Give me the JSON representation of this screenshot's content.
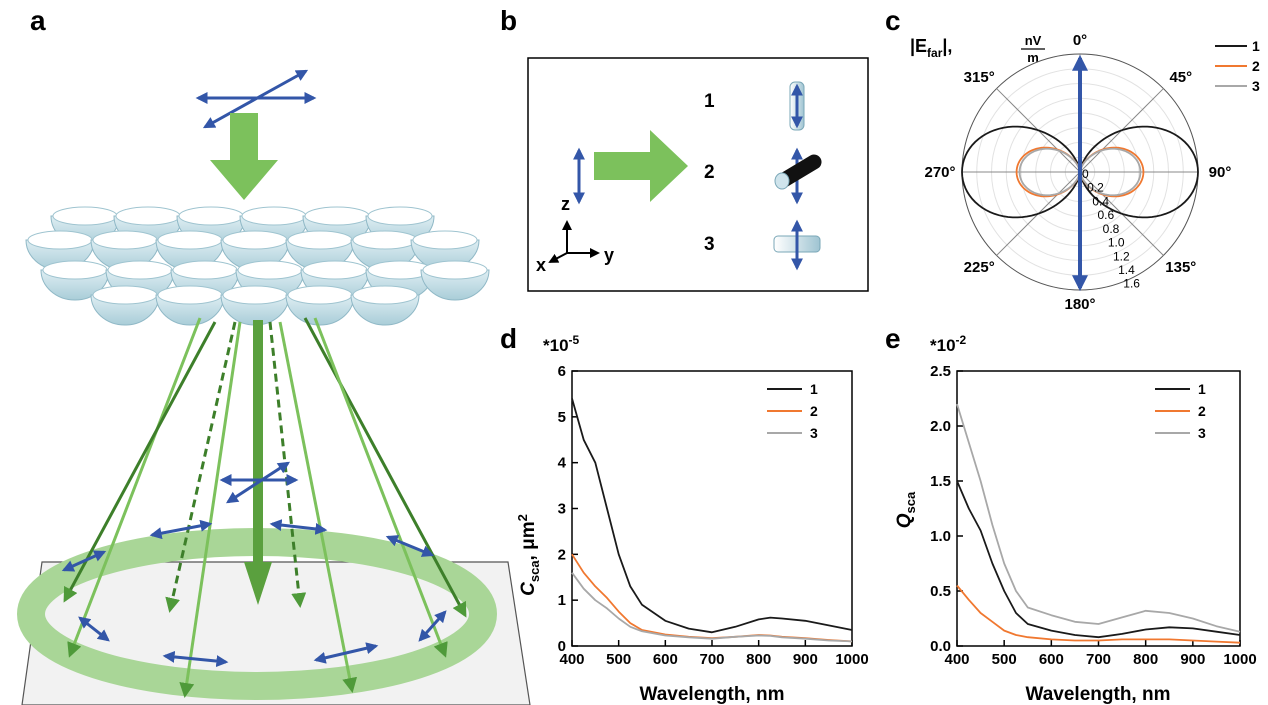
{
  "panels": {
    "a": {
      "label": "a"
    },
    "b": {
      "label": "b",
      "rows": [
        "1",
        "2",
        "3"
      ],
      "axes": {
        "z": "z",
        "x": "x",
        "y": "y"
      }
    },
    "c": {
      "label": "c",
      "ylabel_main": "|E",
      "ylabel_sub": "far",
      "ylabel_tail": "|,",
      "unit_num": "nV",
      "unit_den": "m",
      "angle_labels": [
        "0°",
        "45°",
        "90°",
        "135°",
        "180°",
        "225°",
        "270°",
        "315°"
      ],
      "radial_ticks": [
        "0",
        "0.2",
        "0.4",
        "0.6",
        "0.8",
        "1.0",
        "1.2",
        "1.4",
        "1.6"
      ],
      "legend": [
        "1",
        "2",
        "3"
      ]
    },
    "d": {
      "label": "d",
      "multiplier": "*10",
      "multiplier_exp": "-5",
      "ylabel": "C",
      "ylabel_sub": "sca",
      "ylabel_unit": ", μm",
      "ylabel_exp": "2",
      "xlabel": "Wavelength, nm",
      "xticks": [
        "400",
        "500",
        "600",
        "700",
        "800",
        "900",
        "1000"
      ],
      "yticks": [
        "0",
        "1",
        "2",
        "3",
        "4",
        "5",
        "6"
      ],
      "legend": [
        "1",
        "2",
        "3"
      ]
    },
    "e": {
      "label": "e",
      "multiplier": "*10",
      "multiplier_exp": "-2",
      "ylabel": "Q",
      "ylabel_sub": "sca",
      "xlabel": "Wavelength, nm",
      "xticks": [
        "400",
        "500",
        "600",
        "700",
        "800",
        "900",
        "1000"
      ],
      "yticks": [
        "0.0",
        "0.5",
        "1.0",
        "1.5",
        "2.0",
        "2.5"
      ],
      "legend": [
        "1",
        "2",
        "3"
      ]
    }
  },
  "colors": {
    "series1": "#1a1a1a",
    "series2": "#f07830",
    "series3": "#a8a8a8",
    "arrow_blue": "#3356a8",
    "beam_green": "#7cc15c"
  },
  "chart_data": [
    {
      "type": "line",
      "panel": "c",
      "polar": true,
      "rlim": [
        0,
        1.6
      ],
      "legend_position": "top-right",
      "series": [
        {
          "name": "1",
          "peak": 1.6,
          "shape": "sin^2 dipole lobes at 90° and 270°"
        },
        {
          "name": "2",
          "peak": 0.86,
          "shape": "sin^2 dipole lobes at 90° and 270°"
        },
        {
          "name": "3",
          "peak": 0.82,
          "shape": "sin^2 dipole lobes at 90° and 270°"
        }
      ]
    },
    {
      "type": "line",
      "panel": "d",
      "xlim": [
        400,
        1000
      ],
      "ylim": [
        0,
        6
      ],
      "legend_position": "top-right",
      "x": [
        400,
        425,
        450,
        475,
        500,
        525,
        550,
        600,
        650,
        700,
        750,
        800,
        825,
        850,
        900,
        950,
        1000
      ],
      "series": [
        {
          "name": "1",
          "values": [
            5.4,
            4.5,
            4.0,
            3.0,
            2.0,
            1.3,
            0.9,
            0.55,
            0.38,
            0.3,
            0.42,
            0.58,
            0.62,
            0.6,
            0.55,
            0.45,
            0.35
          ]
        },
        {
          "name": "2",
          "values": [
            2.0,
            1.6,
            1.3,
            1.05,
            0.75,
            0.5,
            0.35,
            0.25,
            0.2,
            0.17,
            0.2,
            0.24,
            0.23,
            0.2,
            0.17,
            0.13,
            0.1
          ]
        },
        {
          "name": "3",
          "values": [
            1.6,
            1.25,
            1.0,
            0.82,
            0.6,
            0.42,
            0.32,
            0.23,
            0.19,
            0.16,
            0.2,
            0.23,
            0.22,
            0.19,
            0.16,
            0.12,
            0.1
          ]
        }
      ]
    },
    {
      "type": "line",
      "panel": "e",
      "xlim": [
        400,
        1000
      ],
      "ylim": [
        0,
        2.5
      ],
      "legend_position": "top-right",
      "x": [
        400,
        425,
        450,
        475,
        500,
        525,
        550,
        600,
        650,
        700,
        750,
        800,
        850,
        900,
        950,
        1000
      ],
      "series": [
        {
          "name": "1",
          "values": [
            1.5,
            1.25,
            1.05,
            0.75,
            0.5,
            0.3,
            0.2,
            0.14,
            0.1,
            0.08,
            0.11,
            0.15,
            0.17,
            0.16,
            0.13,
            0.1
          ]
        },
        {
          "name": "2",
          "values": [
            0.55,
            0.42,
            0.3,
            0.22,
            0.14,
            0.1,
            0.08,
            0.06,
            0.05,
            0.05,
            0.06,
            0.06,
            0.06,
            0.05,
            0.04,
            0.03
          ]
        },
        {
          "name": "3",
          "values": [
            2.2,
            1.85,
            1.5,
            1.1,
            0.75,
            0.5,
            0.35,
            0.28,
            0.22,
            0.2,
            0.26,
            0.32,
            0.3,
            0.25,
            0.18,
            0.13
          ]
        }
      ]
    }
  ]
}
